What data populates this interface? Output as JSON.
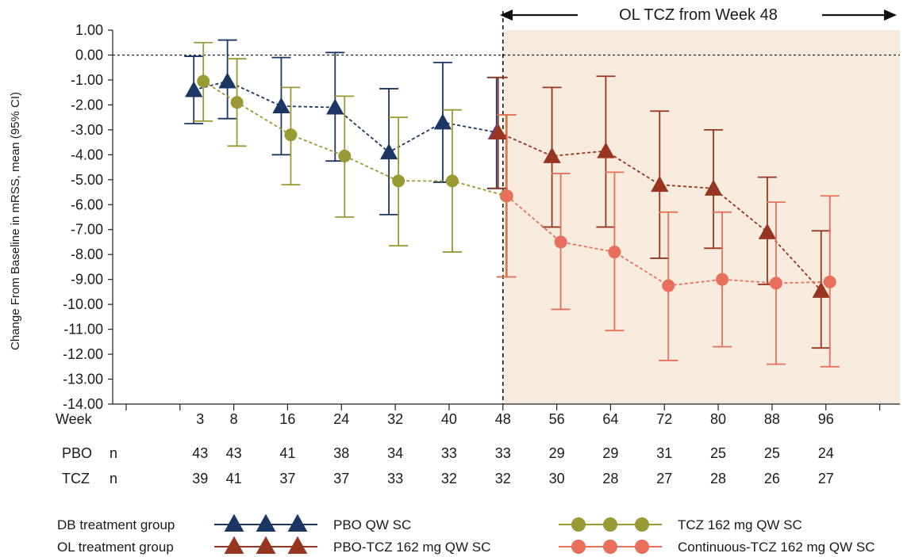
{
  "chart_data": {
    "type": "line",
    "ylabel": "Change From Baseline in mRSS, mean (95% CI)",
    "ylim": [
      -14,
      1
    ],
    "y_ticks": [
      "1.00",
      "0.00",
      "-1.00",
      "-2.00",
      "-3.00",
      "-4.00",
      "-5.00",
      "-6.00",
      "-7.00",
      "-8.00",
      "-9.00",
      "-10.00",
      "-11.00",
      "-12.00",
      "-13.00",
      "-14.00"
    ],
    "x_row_label": "Week",
    "weeks": [
      3,
      8,
      16,
      24,
      32,
      40,
      48,
      56,
      64,
      72,
      80,
      88,
      96
    ],
    "xlim": [
      -10,
      107
    ],
    "reference_line_y": 0,
    "open_label_start_week": 48,
    "shaded_region_label": "OL TCZ from Week 48",
    "colors": {
      "pbo": "#1b3664",
      "tcz": "#9a9a35",
      "pbo_tcz": "#973520",
      "continuous_tcz": "#e86f5c",
      "shade": "#f7ebdd",
      "week48_point": "#6a3a8e"
    },
    "series": [
      {
        "name": "PBO QW SC",
        "marker": "triangle",
        "color_key": "pbo",
        "x": [
          3,
          8,
          16,
          24,
          32,
          40,
          48
        ],
        "values": [
          -1.4,
          -1.05,
          -2.05,
          -2.1,
          -3.9,
          -2.7,
          -3.1
        ],
        "ci_lower": [
          -2.75,
          -2.55,
          -4.0,
          -4.25,
          -6.4,
          -5.1,
          -5.35
        ],
        "ci_upper": [
          -0.05,
          0.6,
          -0.1,
          0.1,
          -1.35,
          -0.3,
          -0.9
        ]
      },
      {
        "name": "TCZ 162 mg QW SC",
        "marker": "circle",
        "color_key": "tcz",
        "x": [
          3,
          8,
          16,
          24,
          32,
          40,
          48
        ],
        "values": [
          -1.05,
          -1.9,
          -3.2,
          -4.05,
          -5.05,
          -5.05,
          -5.65
        ],
        "ci_lower": [
          -2.65,
          -3.65,
          -5.2,
          -6.5,
          -7.65,
          -7.9,
          -8.9
        ],
        "ci_upper": [
          0.5,
          -0.15,
          -1.3,
          -1.65,
          -2.5,
          -2.2,
          -2.4
        ]
      },
      {
        "name": "PBO-TCZ 162 mg QW SC",
        "marker": "triangle",
        "color_key": "pbo_tcz",
        "x": [
          48,
          56,
          64,
          72,
          80,
          88,
          96
        ],
        "values": [
          -3.1,
          -4.05,
          -3.85,
          -5.2,
          -5.35,
          -7.1,
          -9.45
        ],
        "ci_lower": [
          -5.35,
          -6.9,
          -6.9,
          -8.15,
          -7.75,
          -9.2,
          -11.75
        ],
        "ci_upper": [
          -0.9,
          -1.3,
          -0.85,
          -2.25,
          -3.0,
          -4.9,
          -7.05
        ]
      },
      {
        "name": "Continuous-TCZ 162 mg QW SC",
        "marker": "circle",
        "color_key": "continuous_tcz",
        "x": [
          48,
          56,
          64,
          72,
          80,
          88,
          96
        ],
        "values": [
          -5.65,
          -7.5,
          -7.9,
          -9.25,
          -9.0,
          -9.15,
          -9.1
        ],
        "ci_lower": [
          -8.9,
          -10.2,
          -11.05,
          -12.25,
          -11.7,
          -12.4,
          -12.5
        ],
        "ci_upper": [
          -2.4,
          -4.75,
          -4.7,
          -6.3,
          -6.3,
          -5.9,
          -5.65
        ]
      }
    ],
    "n_table": {
      "n_label": "n",
      "rows": [
        {
          "label": "PBO",
          "values": [
            "43",
            "43",
            "41",
            "38",
            "34",
            "33",
            "33",
            "29",
            "29",
            "31",
            "25",
            "25",
            "24"
          ]
        },
        {
          "label": "TCZ",
          "values": [
            "39",
            "41",
            "37",
            "37",
            "33",
            "32",
            "32",
            "30",
            "28",
            "27",
            "28",
            "26",
            "27"
          ]
        }
      ]
    },
    "legend": {
      "placement": "bottom",
      "groups": [
        {
          "label": "DB treatment group",
          "items": [
            {
              "label": "PBO QW SC",
              "marker": "triangle",
              "color_key": "pbo"
            },
            {
              "label": "TCZ 162 mg QW SC",
              "marker": "circle",
              "color_key": "tcz"
            }
          ]
        },
        {
          "label": "OL treatment group",
          "items": [
            {
              "label": "PBO-TCZ 162 mg QW SC",
              "marker": "triangle",
              "color_key": "pbo_tcz"
            },
            {
              "label": "Continuous-TCZ 162 mg QW SC",
              "marker": "circle",
              "color_key": "continuous_tcz"
            }
          ]
        }
      ]
    }
  }
}
